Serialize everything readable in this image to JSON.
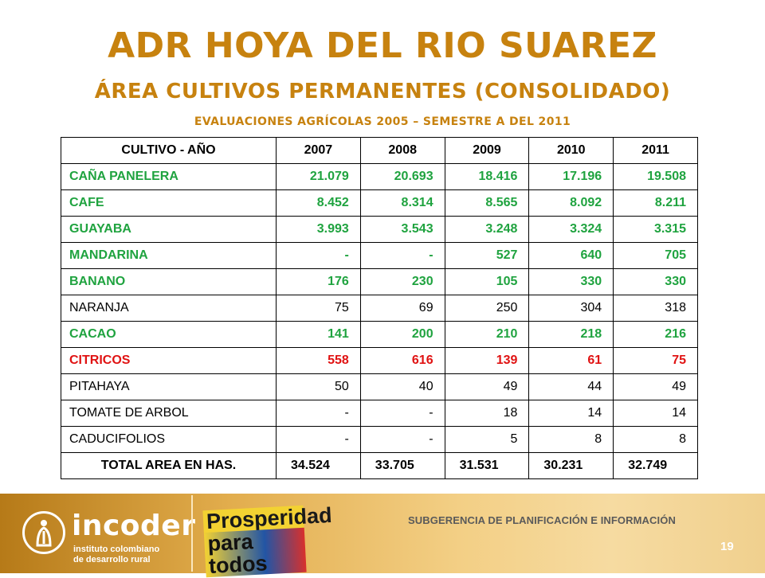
{
  "header": {
    "title": "ADR HOYA DEL RIO SUAREZ",
    "subtitle": "ÁREA CULTIVOS PERMANENTES (CONSOLIDADO)",
    "subtitle2": "EVALUACIONES AGRÍCOLAS 2005 – SEMESTRE A DEL 2011"
  },
  "table": {
    "headers": [
      "CULTIVO  - AÑO",
      "2007",
      "2008",
      "2009",
      "2010",
      "2011"
    ],
    "rows": [
      {
        "style": "green",
        "cells": [
          "CAÑA PANELERA",
          "21.079",
          "20.693",
          "18.416",
          "17.196",
          "19.508"
        ]
      },
      {
        "style": "green",
        "cells": [
          "CAFE",
          "8.452",
          "8.314",
          "8.565",
          "8.092",
          "8.211"
        ]
      },
      {
        "style": "green",
        "cells": [
          "GUAYABA",
          "3.993",
          "3.543",
          "3.248",
          "3.324",
          "3.315"
        ]
      },
      {
        "style": "green",
        "cells": [
          "MANDARINA",
          "-",
          "-",
          "527",
          "640",
          "705"
        ]
      },
      {
        "style": "green",
        "cells": [
          "BANANO",
          "176",
          "230",
          "105",
          "330",
          "330"
        ]
      },
      {
        "style": "black",
        "cells": [
          "NARANJA",
          "75",
          "69",
          "250",
          "304",
          "318"
        ]
      },
      {
        "style": "green",
        "cells": [
          "CACAO",
          "141",
          "200",
          "210",
          "218",
          "216"
        ]
      },
      {
        "style": "red",
        "cells": [
          "CITRICOS",
          "558",
          "616",
          "139",
          "61",
          "75"
        ]
      },
      {
        "style": "black",
        "cells": [
          "PITAHAYA",
          "50",
          "40",
          "49",
          "44",
          "49"
        ]
      },
      {
        "style": "black",
        "cells": [
          "TOMATE DE ARBOL",
          "-",
          "-",
          "18",
          "14",
          "14"
        ]
      },
      {
        "style": "black",
        "cells": [
          "CADUCIFOLIOS",
          "-",
          "-",
          "5",
          "8",
          "8"
        ]
      }
    ],
    "total": [
      "TOTAL AREA EN HAS.",
      "34.524",
      "33.705",
      "31.531",
      "30.231",
      "32.749"
    ]
  },
  "footer": {
    "org_name": "incoder",
    "org_sub1": "instituto colombiano",
    "org_sub2": "de desarrollo rural",
    "slogan_line1": "Prosperidad",
    "slogan_line2": "para todos",
    "department": "SUBGERENCIA DE PLANIFICACIÓN E INFORMACIÓN",
    "page_number": "19"
  },
  "colors": {
    "title": "#c7820f",
    "green_text": "#1fa33f",
    "red_text": "#e01212",
    "footer_gold": "#e2ad4d"
  }
}
